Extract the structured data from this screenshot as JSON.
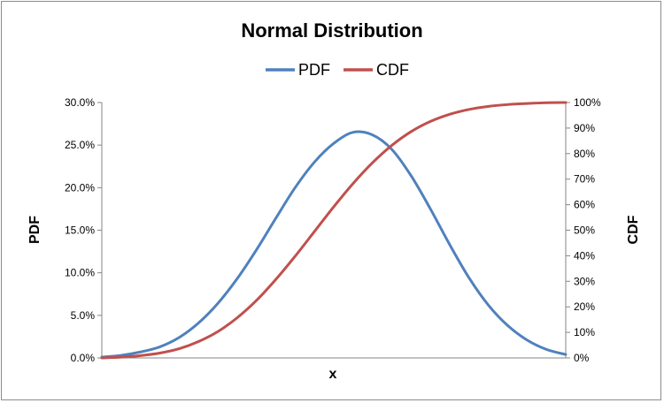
{
  "chart_data": {
    "type": "line",
    "title": "Normal Distribution",
    "xlabel": "x",
    "ylabel": "PDF",
    "y2label": "CDF",
    "legend_position": "top",
    "grid": false,
    "x_tick_labels": false,
    "xlim": [
      -3,
      3
    ],
    "ylim": [
      0,
      0.3
    ],
    "y2lim": [
      0,
      1.0
    ],
    "y_ticks": [
      "0.0%",
      "5.0%",
      "10.0%",
      "15.0%",
      "20.0%",
      "25.0%",
      "30.0%"
    ],
    "y2_ticks": [
      "0%",
      "10%",
      "20%",
      "30%",
      "40%",
      "50%",
      "60%",
      "70%",
      "80%",
      "90%",
      "100%"
    ],
    "series": [
      {
        "name": "PDF",
        "axis": "left",
        "color": "#4f81bd",
        "x": [
          -3.0,
          -2.75,
          -2.5,
          -2.25,
          -2.0,
          -1.75,
          -1.5,
          -1.25,
          -1.0,
          -0.75,
          -0.5,
          -0.25,
          0.0,
          0.25,
          0.5,
          0.75,
          1.0,
          1.25,
          1.5,
          1.75,
          2.0,
          2.25,
          2.5,
          2.75,
          3.0
        ],
        "values": [
          0.001,
          0.003,
          0.007,
          0.013,
          0.024,
          0.041,
          0.064,
          0.093,
          0.127,
          0.164,
          0.2,
          0.23,
          0.252,
          0.265,
          0.262,
          0.245,
          0.214,
          0.175,
          0.133,
          0.094,
          0.062,
          0.038,
          0.021,
          0.01,
          0.004
        ]
      },
      {
        "name": "CDF",
        "axis": "right",
        "color": "#c0504d",
        "x": [
          -3.0,
          -2.75,
          -2.5,
          -2.25,
          -2.0,
          -1.75,
          -1.5,
          -1.25,
          -1.0,
          -0.75,
          -0.5,
          -0.25,
          0.0,
          0.25,
          0.5,
          0.75,
          1.0,
          1.25,
          1.5,
          1.75,
          2.0,
          2.25,
          2.5,
          2.75,
          3.0
        ],
        "values": [
          0.0,
          0.003,
          0.009,
          0.019,
          0.036,
          0.064,
          0.103,
          0.157,
          0.225,
          0.307,
          0.398,
          0.495,
          0.592,
          0.683,
          0.764,
          0.832,
          0.886,
          0.926,
          0.954,
          0.973,
          0.985,
          0.992,
          0.996,
          0.999,
          1.0
        ]
      }
    ]
  }
}
